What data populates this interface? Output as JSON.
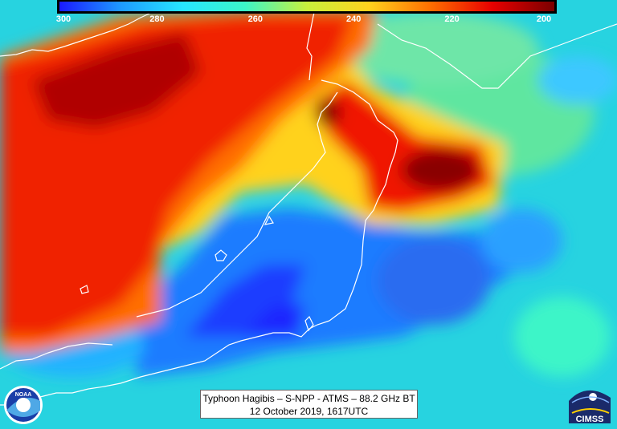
{
  "colorbar": {
    "ticks": [
      "300",
      "280",
      "260",
      "240",
      "220",
      "200"
    ],
    "stops": [
      "#1a1aff",
      "#1e9bff",
      "#27e6ff",
      "#3cf5c8",
      "#c8f03c",
      "#ffd21e",
      "#ff6e00",
      "#e60000",
      "#7a0000"
    ]
  },
  "caption": {
    "line1": "Typhoon Hagibis – S-NPP - ATMS – 88.2 GHz BT",
    "line2": "12 October 2019, 1617UTC"
  },
  "logos": {
    "noaa_text": "NOAA",
    "cimss_text": "CIMSS"
  },
  "colors": {
    "cold_core": "#7a0000",
    "warm_land": "#1a1aff",
    "coastline": "#ffffff",
    "ocean_background": "#27d3e0"
  }
}
